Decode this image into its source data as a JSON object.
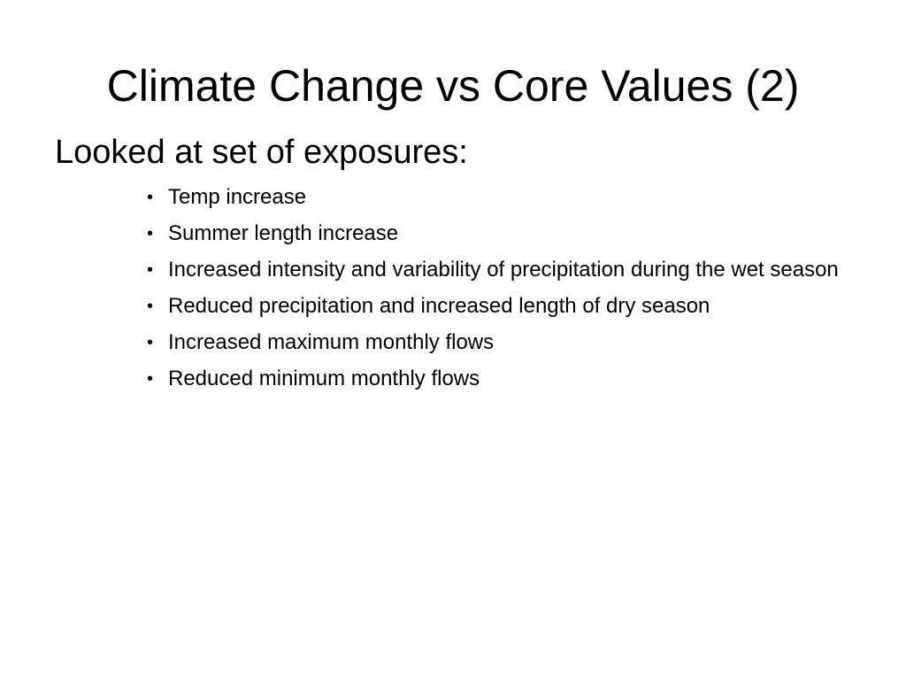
{
  "slide": {
    "title": "Climate Change vs Core Values (2)",
    "subheading": "Looked at set of exposures:",
    "bullet_glyph": "•",
    "bullets": [
      "Temp increase",
      "Summer length increase",
      "Increased intensity and variability of precipitation during the wet season",
      "Reduced precipitation and increased length of dry season",
      "Increased maximum monthly flows",
      "Reduced minimum monthly flows"
    ]
  }
}
